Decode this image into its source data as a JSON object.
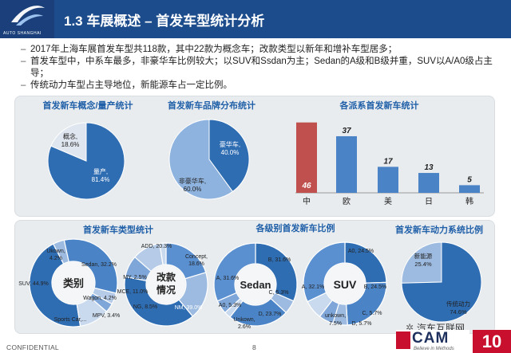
{
  "header": {
    "logo_text": "AUTO SHANGHAI",
    "title": "1.3 车展概述 – 首发车型统计分析"
  },
  "bullets": [
    "2017年上海车展首发车型共118款，其中22款为概念车；改款类型以新年和增补车型居多；",
    "首发车型中，中系车最多，非豪华车比例较大；以SUV和Ssdan为主；Sedan的A级和B级并重，SUV以A/A0级占主导；",
    "传统动力车型占主导地位，新能源车占一定比例。"
  ],
  "colors": {
    "header_blue": "#1c4c8c",
    "dark_blue": "#2f6db3",
    "light_blue": "#8fb3df",
    "red": "#c0504d",
    "panel": "#e8ecef",
    "title_blue": "#1f5fa8"
  },
  "chart_data": [
    {
      "type": "pie",
      "title": "首发新车概念/量产统计",
      "slices": [
        {
          "label": "量产,",
          "pct": "81.4%",
          "value": 81.4
        },
        {
          "label": "概念,",
          "pct": "18.6%",
          "value": 18.6
        }
      ]
    },
    {
      "type": "pie",
      "title": "首发新车品牌分布统计",
      "slices": [
        {
          "label": "豪华车,",
          "pct": "40.0%",
          "value": 40.0
        },
        {
          "label": "非豪华车,",
          "pct": "60.0%",
          "value": 60.0
        }
      ]
    },
    {
      "type": "bar",
      "title": "各派系首发新车统计",
      "categories": [
        "中",
        "欧",
        "美",
        "日",
        "韩"
      ],
      "values": [
        46,
        37,
        17,
        13,
        5
      ],
      "ylim": [
        0,
        50
      ]
    },
    {
      "type": "pie",
      "title": "首发新车类型统计",
      "center_label": "类别",
      "slices": [
        {
          "label": "SUV, 44.9%",
          "value": 44.9
        },
        {
          "label": "Ukown, 4.2%",
          "value": 4.2
        },
        {
          "label": "Sedan, 32.2%",
          "value": 32.2
        },
        {
          "label": "Wagon, 4.2%",
          "value": 4.2
        },
        {
          "label": "MPV, 3.4%",
          "value": 3.4
        },
        {
          "label": "Sports Car,...",
          "value": 11.1
        }
      ]
    },
    {
      "type": "pie",
      "title": "",
      "center_label": "改款情况",
      "center_line1": "改款",
      "center_line2": "情况",
      "slices": [
        {
          "label": "ADD, 20.3%",
          "value": 20.3
        },
        {
          "label": "Concept, 18.6%",
          "value": 18.6
        },
        {
          "label": "NM, 39.0%",
          "value": 39.0
        },
        {
          "label": "NG, 8.5%",
          "value": 8.5
        },
        {
          "label": "MCE, 11.0%",
          "value": 11.0
        },
        {
          "label": "MY, 2.5%",
          "value": 2.5
        }
      ]
    },
    {
      "type": "pie",
      "title": "各级别首发新车比例",
      "center_label": "Sedan",
      "slices": [
        {
          "label": "B, 31.6%",
          "value": 31.6
        },
        {
          "label": "C, 5.3%",
          "value": 5.3
        },
        {
          "label": "D, 23.7%",
          "value": 23.7
        },
        {
          "label": "Unkown, 2.6%",
          "value": 2.6
        },
        {
          "label": "A0, 5.3%",
          "value": 5.3
        },
        {
          "label": "A, 31.6%",
          "value": 31.6
        }
      ]
    },
    {
      "type": "pie",
      "title": "",
      "center_label": "SUV",
      "slices": [
        {
          "label": "A0, 24.5%",
          "value": 24.5
        },
        {
          "label": "B, 24.5%",
          "value": 24.5
        },
        {
          "label": "C, 5.7%",
          "value": 5.7
        },
        {
          "label": "D, 5.7%",
          "value": 5.7
        },
        {
          "label": "unkown, 7.5%",
          "value": 7.5
        },
        {
          "label": "A, 32.1%",
          "value": 32.1
        }
      ]
    },
    {
      "type": "pie",
      "title": "首发新车动力系统比例",
      "slices": [
        {
          "label": "新能源",
          "pct": "25.4%",
          "value": 25.4
        },
        {
          "label": "传统动力",
          "pct": "74.6%",
          "value": 74.6
        }
      ]
    }
  ],
  "footer": {
    "confidential": "CONFIDENTIAL",
    "page": "8",
    "cam_word": "CAM",
    "cam_tag": "Believe in Methods",
    "watermark": "汽车互联网",
    "badge": "10"
  }
}
